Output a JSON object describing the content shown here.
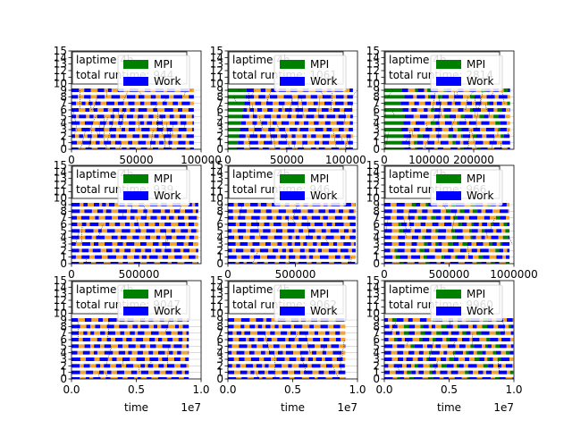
{
  "colors": {
    "mpi": "#008000",
    "work": "#0000ff",
    "lap": "#f4a530",
    "rowline": "#c8c8c8",
    "comm": "#000000"
  },
  "legend": {
    "mpi_label": "MPI",
    "work_label": "Work"
  },
  "chart_data": [
    {
      "type": "bar",
      "row": 0,
      "col": 0,
      "annotation_line1": "laptime 4h",
      "annotation_line2": "total runtime: 944",
      "xlim": [
        0,
        100000
      ],
      "xticks": [
        0,
        50000,
        100000
      ],
      "xtick_labels": [
        "0",
        "50000",
        "100000"
      ],
      "xlabel": "",
      "offset_label": "",
      "ylim": [
        0,
        15
      ],
      "yticks": [
        0,
        1,
        2,
        3,
        4,
        5,
        6,
        7,
        8,
        9,
        10,
        11,
        12,
        13,
        14,
        15
      ],
      "ranks": 10,
      "duration": 94400,
      "legend_position": "top-center"
    },
    {
      "type": "bar",
      "row": 0,
      "col": 1,
      "annotation_line1": "laptime 4h",
      "annotation_line2": "total runtime: 1061",
      "xlim": [
        0,
        110000
      ],
      "xticks": [
        0,
        50000,
        100000
      ],
      "xtick_labels": [
        "0",
        "50000",
        "100000"
      ],
      "xlabel": "",
      "offset_label": "",
      "ylim": [
        0,
        15
      ],
      "yticks": [
        0,
        1,
        2,
        3,
        4,
        5,
        6,
        7,
        8,
        9,
        10,
        11,
        12,
        13,
        14,
        15
      ],
      "ranks": 10,
      "duration": 106100,
      "legend_position": "top-center"
    },
    {
      "type": "bar",
      "row": 0,
      "col": 2,
      "annotation_line1": "laptime 4h",
      "annotation_line2": "total runtime: 2814",
      "xlim": [
        0,
        290000
      ],
      "xticks": [
        0,
        100000,
        200000
      ],
      "xtick_labels": [
        "0",
        "100000",
        "200000"
      ],
      "xlabel": "",
      "offset_label": "",
      "ylim": [
        0,
        15
      ],
      "yticks": [
        0,
        1,
        2,
        3,
        4,
        5,
        6,
        7,
        8,
        9,
        10,
        11,
        12,
        13,
        14,
        15
      ],
      "ranks": 10,
      "duration": 281400,
      "legend_position": "top-center"
    },
    {
      "type": "bar",
      "row": 1,
      "col": 0,
      "annotation_line1": "laptime 4h",
      "annotation_line2": "total runtime: 939",
      "xlim": [
        0,
        960000
      ],
      "xticks": [
        0,
        500000
      ],
      "xtick_labels": [
        "0",
        "500000"
      ],
      "xlabel": "",
      "offset_label": "",
      "ylim": [
        0,
        15
      ],
      "yticks": [
        0,
        1,
        2,
        3,
        4,
        5,
        6,
        7,
        8,
        9,
        10,
        11,
        12,
        13,
        14,
        15
      ],
      "ranks": 10,
      "duration": 939000,
      "legend_position": "top-center"
    },
    {
      "type": "bar",
      "row": 1,
      "col": 1,
      "annotation_line1": "laptime 4h",
      "annotation_line2": "total runtime: 946",
      "xlim": [
        0,
        960000
      ],
      "xticks": [
        0,
        500000
      ],
      "xtick_labels": [
        "0",
        "500000"
      ],
      "xlabel": "",
      "offset_label": "",
      "ylim": [
        0,
        15
      ],
      "yticks": [
        0,
        1,
        2,
        3,
        4,
        5,
        6,
        7,
        8,
        9,
        10,
        11,
        12,
        13,
        14,
        15
      ],
      "ranks": 10,
      "duration": 946000,
      "legend_position": "top-center"
    },
    {
      "type": "bar",
      "row": 1,
      "col": 2,
      "annotation_line1": "laptime 4h",
      "annotation_line2": "total runtime: 966",
      "xlim": [
        0,
        1000000
      ],
      "xticks": [
        0,
        500000,
        1000000
      ],
      "xtick_labels": [
        "0",
        "500000",
        "1000000"
      ],
      "xlabel": "",
      "offset_label": "",
      "ylim": [
        0,
        15
      ],
      "yticks": [
        0,
        1,
        2,
        3,
        4,
        5,
        6,
        7,
        8,
        9,
        10,
        11,
        12,
        13,
        14,
        15
      ],
      "ranks": 10,
      "duration": 966000,
      "legend_position": "top-center"
    },
    {
      "type": "bar",
      "row": 2,
      "col": 0,
      "annotation_line1": "laptime 4h",
      "annotation_line2": "total runtime: 9047",
      "xlim": [
        0,
        1.0
      ],
      "xticks": [
        0,
        0.5,
        1.0
      ],
      "xtick_labels": [
        "0.0",
        "0.5",
        "1.0"
      ],
      "xlabel": "time",
      "offset_label": "1e7",
      "ylim": [
        0,
        15
      ],
      "yticks": [
        0,
        1,
        2,
        3,
        4,
        5,
        6,
        7,
        8,
        9,
        10,
        11,
        12,
        13,
        14,
        15
      ],
      "ranks": 10,
      "duration": 0.9047,
      "legend_position": "top-center"
    },
    {
      "type": "bar",
      "row": 2,
      "col": 1,
      "annotation_line1": "laptime 4h",
      "annotation_line2": "total runtime: 9062",
      "xlim": [
        0,
        1.0
      ],
      "xticks": [
        0,
        0.5,
        1.0
      ],
      "xtick_labels": [
        "0.0",
        "0.5",
        "1.0"
      ],
      "xlabel": "time",
      "offset_label": "1e7",
      "ylim": [
        0,
        15
      ],
      "yticks": [
        0,
        1,
        2,
        3,
        4,
        5,
        6,
        7,
        8,
        9,
        10,
        11,
        12,
        13,
        14,
        15
      ],
      "ranks": 10,
      "duration": 0.9062,
      "legend_position": "top-center"
    },
    {
      "type": "bar",
      "row": 2,
      "col": 2,
      "annotation_line1": "laptime 4h",
      "annotation_line2": "total runtime: 9960",
      "xlim": [
        0,
        1.0
      ],
      "xticks": [
        0,
        0.5,
        1.0
      ],
      "xtick_labels": [
        "0.0",
        "0.5",
        "1.0"
      ],
      "xlabel": "time",
      "offset_label": "1e7",
      "ylim": [
        0,
        15
      ],
      "yticks": [
        0,
        1,
        2,
        3,
        4,
        5,
        6,
        7,
        8,
        9,
        10,
        11,
        12,
        13,
        14,
        15
      ],
      "ranks": 10,
      "duration": 0.996,
      "legend_position": "top-center"
    }
  ]
}
